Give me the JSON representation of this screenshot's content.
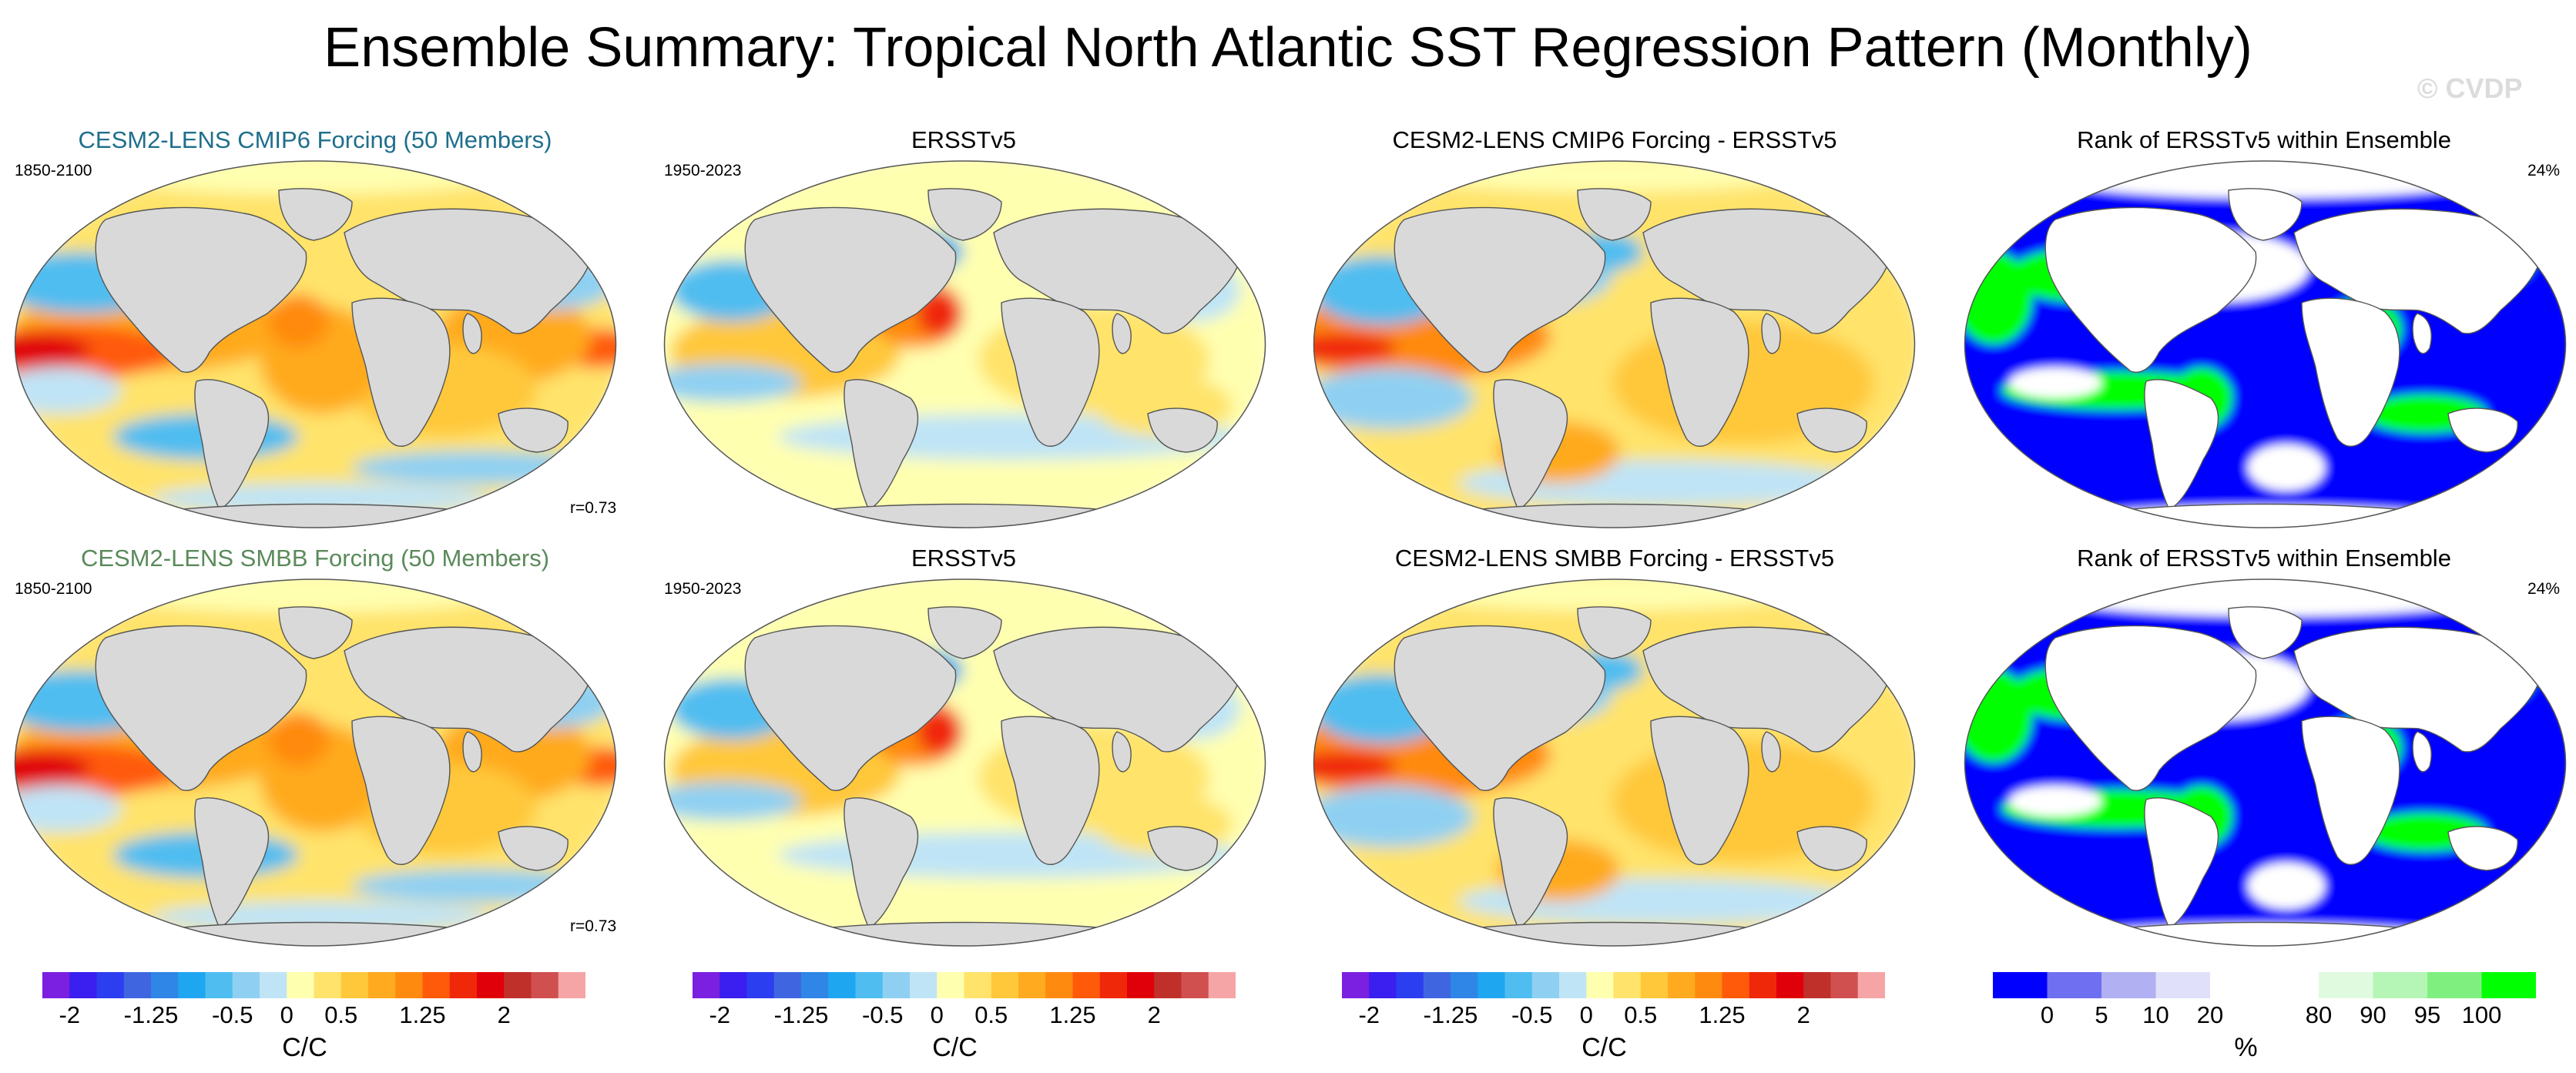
{
  "title": "Ensemble Summary: Tropical North Atlantic SST Regression Pattern (Monthly)",
  "watermark": "© CVDP",
  "colors": {
    "title_cmip6": "#1f6e8c",
    "title_smbb": "#5b8a5b",
    "land": "#d9d9d9",
    "rank_low": "#0000ff",
    "rank_high": "#00ff00"
  },
  "rows": [
    {
      "panels": [
        {
          "title": "CESM2-LENS CMIP6 Forcing (50 Members)",
          "left_label": "1850-2100",
          "right_label": "",
          "bottom_label": "r=0.73",
          "type": "model"
        },
        {
          "title": "ERSSTv5",
          "left_label": "1950-2023",
          "right_label": "",
          "bottom_label": "",
          "type": "obs"
        },
        {
          "title": "CESM2-LENS CMIP6 Forcing - ERSSTv5",
          "left_label": "",
          "right_label": "",
          "bottom_label": "",
          "type": "diff"
        },
        {
          "title": "Rank of ERSSTv5 within Ensemble",
          "left_label": "",
          "right_label": "24%",
          "bottom_label": "",
          "type": "rank"
        }
      ]
    },
    {
      "panels": [
        {
          "title": "CESM2-LENS SMBB Forcing (50 Members)",
          "left_label": "1850-2100",
          "right_label": "",
          "bottom_label": "r=0.73",
          "type": "model"
        },
        {
          "title": "ERSSTv5",
          "left_label": "1950-2023",
          "right_label": "",
          "bottom_label": "",
          "type": "obs"
        },
        {
          "title": "CESM2-LENS SMBB Forcing - ERSSTv5",
          "left_label": "",
          "right_label": "",
          "bottom_label": "",
          "type": "diff"
        },
        {
          "title": "Rank of ERSSTv5 within Ensemble",
          "left_label": "",
          "right_label": "24%",
          "bottom_label": "",
          "type": "rank"
        }
      ]
    }
  ],
  "colorbars": [
    {
      "unit": "C/C",
      "colors": [
        "#7b1fe0",
        "#3a1ff0",
        "#2c3ff0",
        "#3f66e0",
        "#2f86e6",
        "#1fa6f0",
        "#4fbdf0",
        "#8fd0f2",
        "#bfe4f6",
        "#ffffb0",
        "#ffe36a",
        "#ffc83a",
        "#ffaa1f",
        "#ff8a10",
        "#ff5a0a",
        "#f0280a",
        "#e0000a",
        "#c0302a",
        "#d05050",
        "#f5a5a5"
      ],
      "tick_labels": [
        "-2",
        "-1.25",
        "-0.5",
        "0",
        "0.5",
        "1.25",
        "2"
      ],
      "tick_positions": [
        1,
        4,
        7,
        9,
        11,
        14,
        17
      ]
    },
    {
      "unit": "C/C",
      "colors": [
        "#7b1fe0",
        "#3a1ff0",
        "#2c3ff0",
        "#3f66e0",
        "#2f86e6",
        "#1fa6f0",
        "#4fbdf0",
        "#8fd0f2",
        "#bfe4f6",
        "#ffffb0",
        "#ffe36a",
        "#ffc83a",
        "#ffaa1f",
        "#ff8a10",
        "#ff5a0a",
        "#f0280a",
        "#e0000a",
        "#c0302a",
        "#d05050",
        "#f5a5a5"
      ],
      "tick_labels": [
        "-2",
        "-1.25",
        "-0.5",
        "0",
        "0.5",
        "1.25",
        "2"
      ],
      "tick_positions": [
        1,
        4,
        7,
        9,
        11,
        14,
        17
      ]
    },
    {
      "unit": "C/C",
      "colors": [
        "#7b1fe0",
        "#3a1ff0",
        "#2c3ff0",
        "#3f66e0",
        "#2f86e6",
        "#1fa6f0",
        "#4fbdf0",
        "#8fd0f2",
        "#bfe4f6",
        "#ffffb0",
        "#ffe36a",
        "#ffc83a",
        "#ffaa1f",
        "#ff8a10",
        "#ff5a0a",
        "#f0280a",
        "#e0000a",
        "#c0302a",
        "#d05050",
        "#f5a5a5"
      ],
      "tick_labels": [
        "-2",
        "-1.25",
        "-0.5",
        "0",
        "0.5",
        "1.25",
        "2"
      ],
      "tick_positions": [
        1,
        4,
        7,
        9,
        11,
        14,
        17
      ]
    },
    {
      "unit": "%",
      "colors": [
        "#0000ff",
        "#6f6ff2",
        "#b0b0f2",
        "#e0e0fa",
        "#ffffff",
        "#ffffff",
        "#e0fae0",
        "#b5f5b5",
        "#7ff07f",
        "#00ff00"
      ],
      "tick_labels": [
        "0",
        "5",
        "10",
        "20",
        "80",
        "90",
        "95",
        "100"
      ],
      "tick_positions": [
        1,
        2,
        3,
        4,
        6,
        7,
        8,
        9
      ]
    }
  ]
}
